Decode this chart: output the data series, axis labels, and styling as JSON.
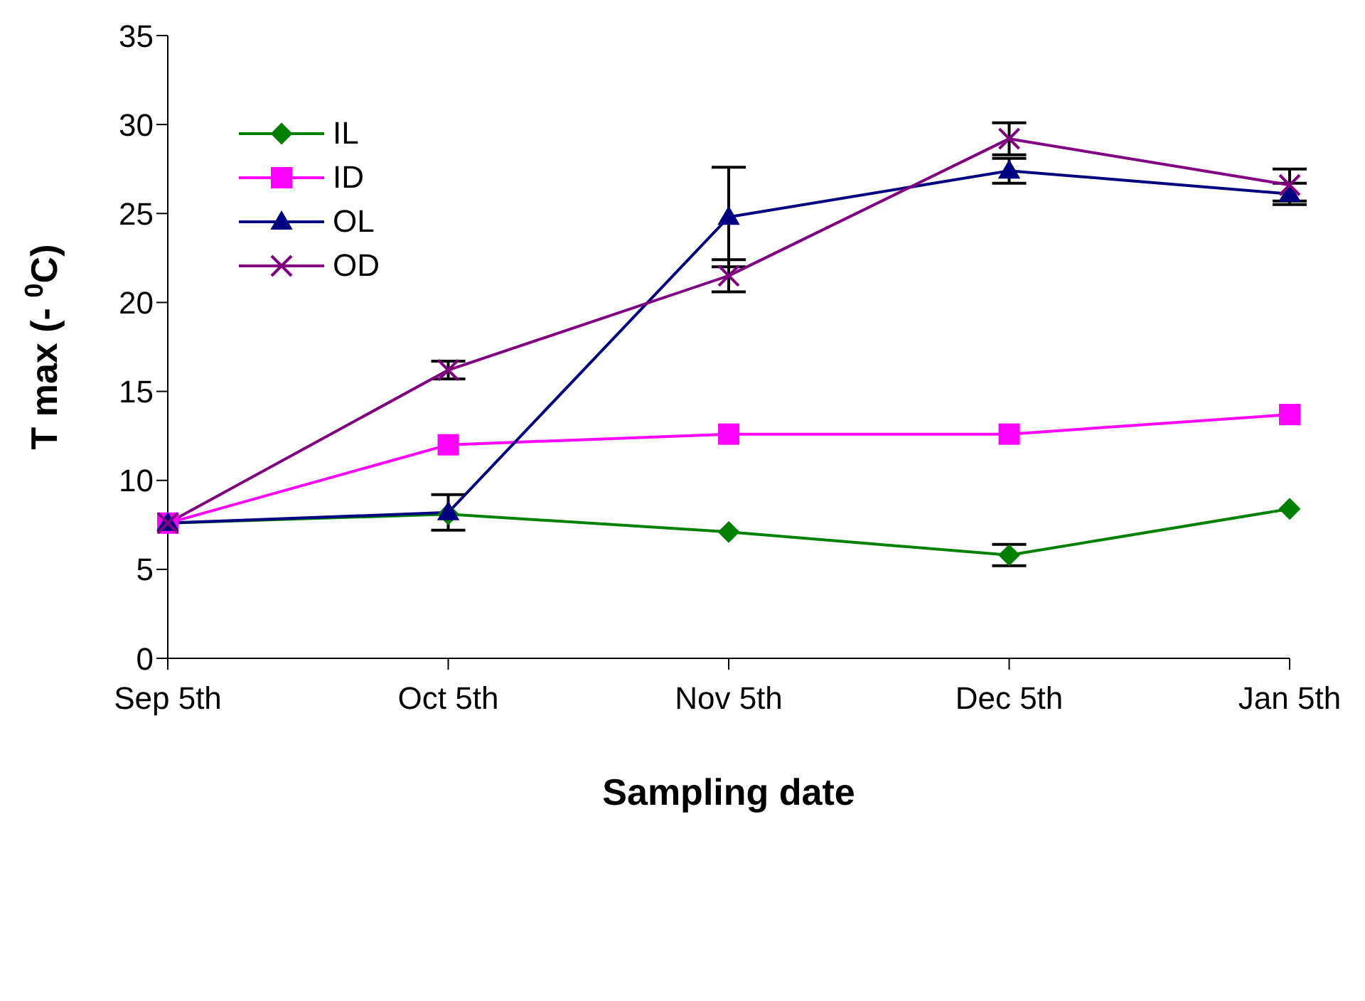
{
  "chart_data": {
    "type": "line",
    "xlabel": "Sampling date",
    "ylabel": "T max (- $^{0}$C)",
    "categories": [
      "Sep 5th",
      "Oct 5th",
      "Nov 5th",
      "Dec 5th",
      "Jan 5th"
    ],
    "series": [
      {
        "name": "IL",
        "color": "#008000",
        "marker": "diamond",
        "values": [
          7.6,
          8.1,
          7.1,
          5.8,
          8.4
        ],
        "errors": [
          null,
          null,
          null,
          0.6,
          null
        ]
      },
      {
        "name": "ID",
        "color": "#ff00ff",
        "marker": "square",
        "values": [
          7.6,
          12.0,
          12.6,
          12.6,
          13.7
        ]
      },
      {
        "name": "OL",
        "color": "#000080",
        "marker": "triangle",
        "values": [
          7.6,
          8.2,
          24.8,
          27.4,
          26.1
        ],
        "errors": [
          null,
          1.0,
          2.8,
          0.7,
          0.6
        ]
      },
      {
        "name": "OD",
        "color": "#800080",
        "marker": "cross",
        "values": [
          7.6,
          16.2,
          21.5,
          29.2,
          26.6
        ],
        "errors": [
          null,
          0.5,
          0.9,
          0.9,
          0.9
        ]
      }
    ],
    "ylim": [
      0,
      35
    ],
    "yticks": [
      0,
      5,
      10,
      15,
      20,
      25,
      30,
      35
    ],
    "grid": false,
    "legend": "top left"
  }
}
